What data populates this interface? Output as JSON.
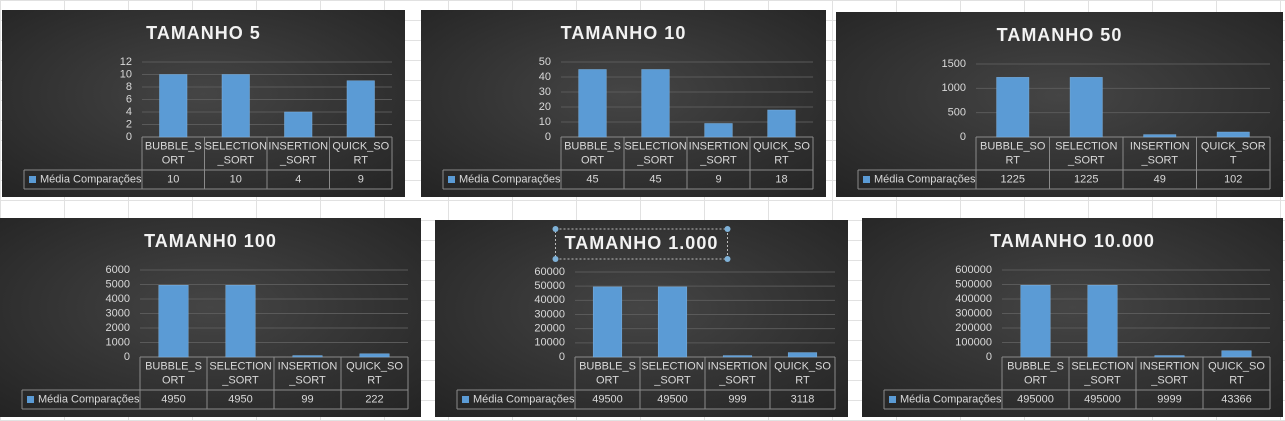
{
  "chart_data": [
    {
      "type": "bar",
      "title": "TAMANHO 5",
      "categories": [
        "BUBBLE_SORT",
        "SELECTION_SORT",
        "INSERTION_SORT",
        "QUICK_SORT"
      ],
      "series": [
        {
          "name": "Média Comparações",
          "color": "#5b9bd5",
          "values": [
            10,
            10,
            4,
            9
          ]
        }
      ],
      "ylim": [
        0,
        12
      ],
      "yticks": [
        0,
        2,
        4,
        6,
        8,
        10,
        12
      ],
      "grid": true
    },
    {
      "type": "bar",
      "title": "TAMANHO 10",
      "categories": [
        "BUBBLE_SORT",
        "SELECTION_SORT",
        "INSERTION_SORT",
        "QUICK_SORT"
      ],
      "series": [
        {
          "name": "Média Comparações",
          "color": "#5b9bd5",
          "values": [
            45,
            45,
            9,
            18
          ]
        }
      ],
      "ylim": [
        0,
        50
      ],
      "yticks": [
        0,
        10,
        20,
        30,
        40,
        50
      ],
      "grid": true
    },
    {
      "type": "bar",
      "title": "TAMANHO 50",
      "categories": [
        "BUBBLE_SORT",
        "SELECTION_SORT",
        "INSERTION_SORT",
        "QUICK_SORT"
      ],
      "series": [
        {
          "name": "Média Comparações",
          "color": "#5b9bd5",
          "values": [
            1225,
            1225,
            49,
            102
          ]
        }
      ],
      "ylim": [
        0,
        1500
      ],
      "yticks": [
        0,
        500,
        1000,
        1500
      ],
      "grid": true
    },
    {
      "type": "bar",
      "title": "TAMANH0 100",
      "categories": [
        "BUBBLE_SORT",
        "SELECTION_SORT",
        "INSERTION_SORT",
        "QUICK_SORT"
      ],
      "series": [
        {
          "name": "Média Comparações",
          "color": "#5b9bd5",
          "values": [
            4950,
            4950,
            99,
            222
          ]
        }
      ],
      "ylim": [
        0,
        6000
      ],
      "yticks": [
        0,
        1000,
        2000,
        3000,
        4000,
        5000,
        6000
      ],
      "grid": true
    },
    {
      "type": "bar",
      "title": "TAMANHO 1.000",
      "categories": [
        "BUBBLE_SORT",
        "SELECTION_SORT",
        "INSERTION_SORT",
        "QUICK_SORT"
      ],
      "series": [
        {
          "name": "Média Comparações",
          "color": "#5b9bd5",
          "values": [
            49500,
            49500,
            999,
            3118
          ]
        }
      ],
      "ylim": [
        0,
        60000
      ],
      "yticks": [
        0,
        10000,
        20000,
        30000,
        40000,
        50000,
        60000
      ],
      "grid": true
    },
    {
      "type": "bar",
      "title": "TAMANHO 10.000",
      "categories": [
        "BUBBLE_SORT",
        "SELECTION_SORT",
        "INSERTION_SORT",
        "QUICK_SORT"
      ],
      "series": [
        {
          "name": "Média Comparações",
          "color": "#5b9bd5",
          "values": [
            495000,
            495000,
            9999,
            43366
          ]
        }
      ],
      "ylim": [
        0,
        600000
      ],
      "yticks": [
        0,
        100000,
        200000,
        300000,
        400000,
        500000,
        600000
      ],
      "grid": true
    }
  ]
}
